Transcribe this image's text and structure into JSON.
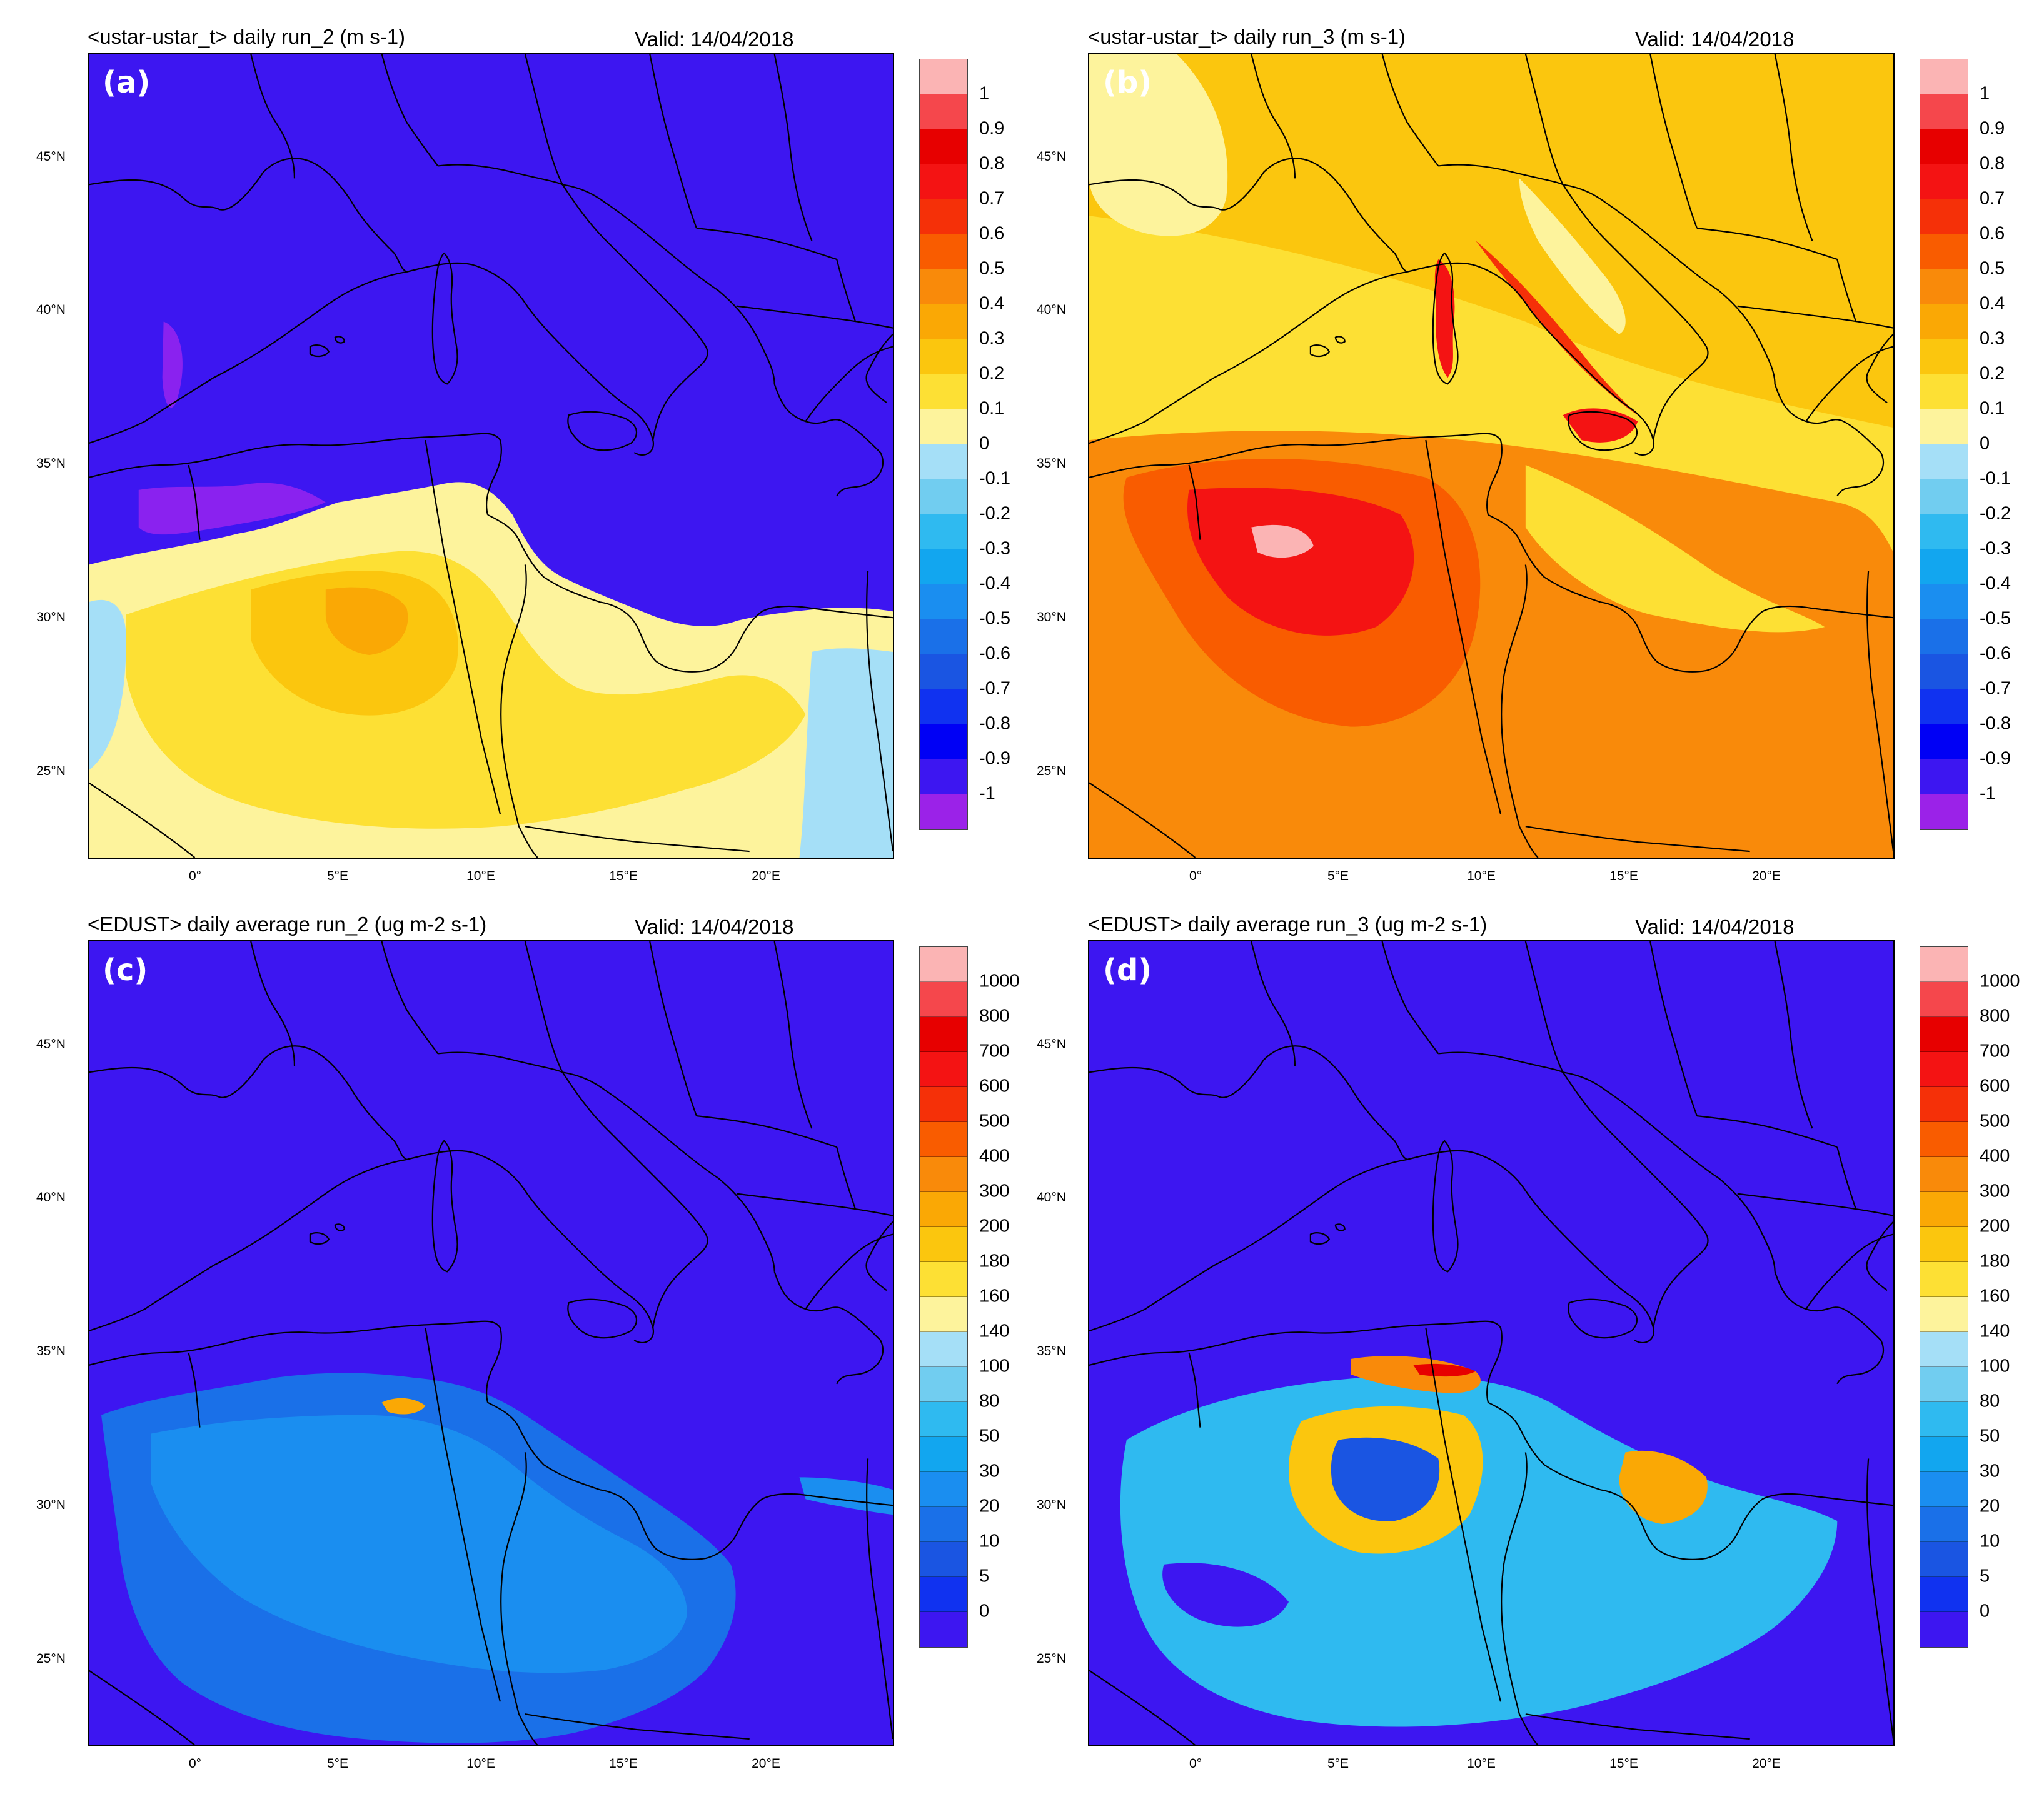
{
  "panels": [
    {
      "id": "a",
      "label": "(a)",
      "title": "<ustar-ustar_t> daily run_2 (m s-1)",
      "valid": "Valid: 14/04/2018",
      "scale": "ustar"
    },
    {
      "id": "b",
      "label": "(b)",
      "title": "<ustar-ustar_t> daily run_3 (m s-1)",
      "valid": "Valid: 14/04/2018",
      "scale": "ustar"
    },
    {
      "id": "c",
      "label": "(c)",
      "title": "<EDUST> daily average run_2 (ug m-2 s-1)",
      "valid": "Valid: 14/04/2018",
      "scale": "edust"
    },
    {
      "id": "d",
      "label": "(d)",
      "title": "<EDUST> daily average run_3 (ug m-2 s-1)",
      "valid": "Valid: 14/04/2018",
      "scale": "edust"
    }
  ],
  "lat_ticks": [
    "45°N",
    "40°N",
    "35°N",
    "30°N",
    "25°N"
  ],
  "lon_ticks": [
    "0°",
    "5°E",
    "10°E",
    "15°E",
    "20°E"
  ],
  "colorbars": {
    "ustar": {
      "labels": [
        "1",
        "0.9",
        "0.8",
        "0.7",
        "0.6",
        "0.5",
        "0.4",
        "0.3",
        "0.2",
        "0.1",
        "0",
        "-0.1",
        "-0.2",
        "-0.3",
        "-0.4",
        "-0.5",
        "-0.6",
        "-0.7",
        "-0.8",
        "-0.9",
        "-1"
      ],
      "colors": [
        "#fbb4b4",
        "#f5474c",
        "#e70000",
        "#f41313",
        "#f53008",
        "#f95c00",
        "#f98a0a",
        "#faa805",
        "#fbc60e",
        "#fde034",
        "#fdf39c",
        "#a5dff7",
        "#71cdf0",
        "#2fbaf0",
        "#12a6ef",
        "#1a8ef0",
        "#1a70e8",
        "#1a55e2",
        "#1032f0",
        "#0000f5",
        "#3d16f1",
        "#9b22e8"
      ]
    },
    "edust": {
      "labels": [
        "1000",
        "800",
        "700",
        "600",
        "500",
        "400",
        "300",
        "200",
        "180",
        "160",
        "140",
        "100",
        "80",
        "50",
        "30",
        "20",
        "10",
        "5",
        "0"
      ],
      "colors": [
        "#fbb4b4",
        "#f5474c",
        "#e70000",
        "#f41313",
        "#f53008",
        "#f95c00",
        "#f98a0a",
        "#faa805",
        "#fbc60e",
        "#fde034",
        "#fdf39c",
        "#a5dff7",
        "#71cdf0",
        "#2fbaf0",
        "#12a6ef",
        "#1a8ef0",
        "#1a70e8",
        "#1a55e2",
        "#1032f0",
        "#3d16f1"
      ]
    }
  }
}
